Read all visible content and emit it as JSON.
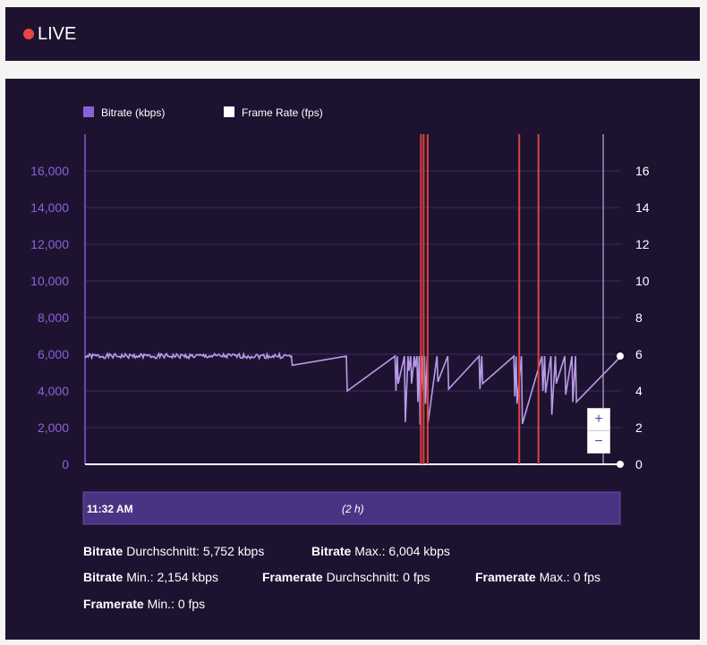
{
  "header": {
    "live_label": "LIVE",
    "live_dot_color": "#e84545"
  },
  "chart_data": {
    "type": "line",
    "legend": {
      "placement": "top-left",
      "items": [
        {
          "label": "Bitrate (kbps)",
          "color": "#8b62d6"
        },
        {
          "label": "Frame Rate (fps)",
          "color": "#ffffff"
        }
      ]
    },
    "y_left": {
      "ticks": [
        "0",
        "2,000",
        "4,000",
        "6,000",
        "8,000",
        "10,000",
        "12,000",
        "14,000",
        "16,000"
      ],
      "range": [
        0,
        18000
      ]
    },
    "y_right": {
      "ticks": [
        "0",
        "2",
        "4",
        "6",
        "8",
        "10",
        "12",
        "14",
        "16"
      ],
      "range": [
        0,
        18
      ]
    },
    "x_range": [
      0,
      120
    ],
    "grid": true,
    "series": [
      {
        "name": "Bitrate (kbps)",
        "color": "#b99be8",
        "baseline": 5900,
        "x": [
          0,
          11.5,
          46.2,
          46.4,
          58.5,
          58.7,
          69.4,
          69.6,
          69.9,
          70.1,
          71.5,
          71.7,
          72.3,
          72.5,
          72.9,
          73.1,
          73.7,
          73.9,
          74.3,
          74.5,
          74.8,
          75.0,
          75.5,
          75.7,
          76.0,
          76.2,
          76.6,
          76.8,
          78.8,
          79.0,
          81.2,
          81.4,
          88.2,
          88.4,
          88.8,
          89.0,
          96.0,
          96.2,
          96.5,
          96.7,
          97.7,
          97.9,
          102.3,
          102.5,
          102.9,
          103.1,
          104.3,
          104.5,
          105.3,
          105.5,
          107.4,
          107.6,
          109.0,
          109.2,
          109.8,
          110.0,
          120
        ],
        "y": [
          5900,
          5900,
          5900,
          5400,
          5900,
          4000,
          5900,
          4000,
          5900,
          4400,
          5900,
          2300,
          5900,
          5100,
          5900,
          4400,
          5900,
          5300,
          5900,
          3400,
          5900,
          2154,
          5900,
          4000,
          5900,
          3300,
          5900,
          2300,
          5900,
          4500,
          5900,
          4100,
          5900,
          4100,
          5900,
          4400,
          5900,
          3700,
          5900,
          3300,
          5900,
          2200,
          5900,
          4000,
          5900,
          3900,
          5900,
          2700,
          5900,
          4400,
          5900,
          3800,
          5900,
          3400,
          5900,
          3400,
          5900
        ]
      },
      {
        "name": "Frame Rate (fps)",
        "color": "#ffffff",
        "x": [
          0,
          120
        ],
        "y": [
          0,
          0
        ]
      }
    ],
    "markers": {
      "color": "#d9453e",
      "x": [
        75.2,
        75.8,
        76.7,
        97.2,
        101.5
      ]
    },
    "plot_end_x": 116
  },
  "timeline": {
    "start_label": "11:32 AM",
    "duration_label": "(2 h)"
  },
  "zoom": {
    "plus": "+",
    "minus": "−"
  },
  "stats": {
    "bitrate_avg": {
      "label": "Bitrate",
      "text": " Durchschnitt: 5,752 kbps"
    },
    "bitrate_max": {
      "label": "Bitrate",
      "text": " Max.: 6,004 kbps"
    },
    "bitrate_min": {
      "label": "Bitrate",
      "text": " Min.: 2,154 kbps"
    },
    "framerate_avg": {
      "label": "Framerate",
      "text": " Durchschnitt: 0 fps"
    },
    "framerate_max": {
      "label": "Framerate",
      "text": " Max.: 0 fps"
    },
    "framerate_min": {
      "label": "Framerate",
      "text": " Min.: 0 fps"
    }
  }
}
